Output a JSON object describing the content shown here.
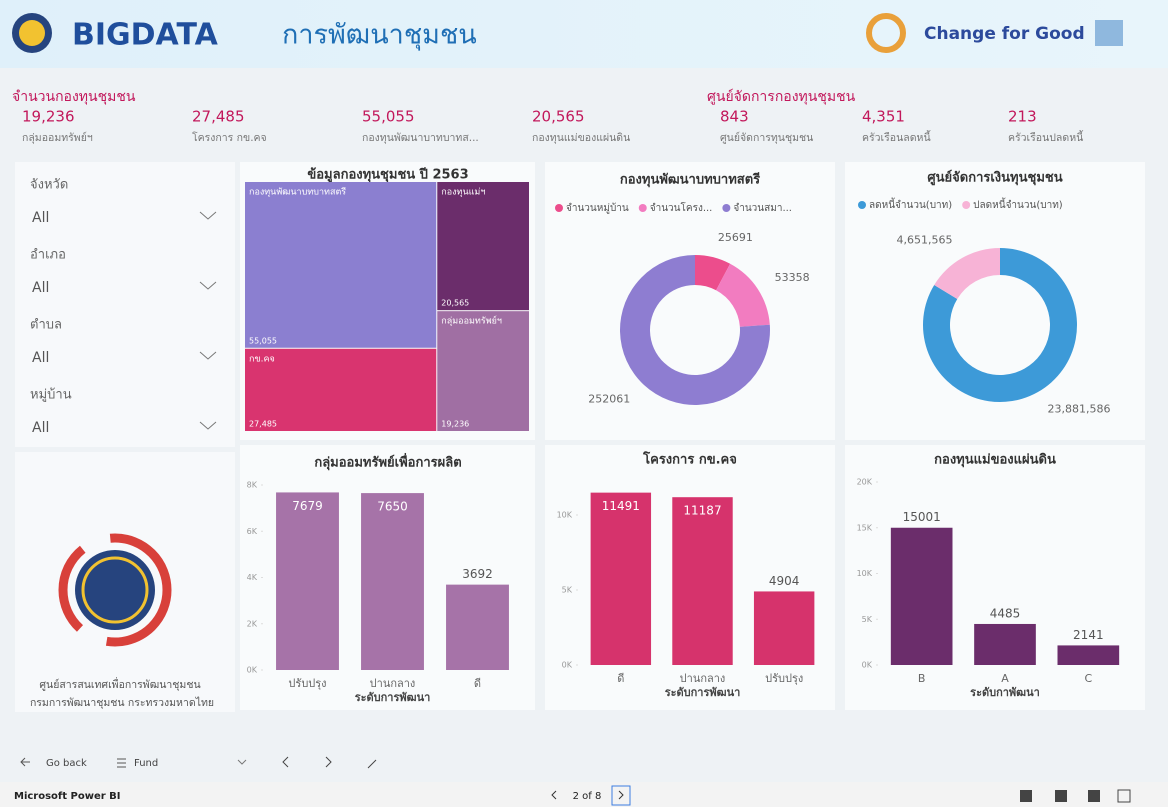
{
  "header": {
    "title": "BIGDATA",
    "subtitle": "การพัฒนาชุมชน",
    "brand": "Change for Good"
  },
  "kpis": {
    "fund_title": "จำนวนกองทุนชุมชน",
    "fund_items": [
      {
        "value": "19,236",
        "label": "กลุ่มออมทรัพย์ฯ"
      },
      {
        "value": "27,485",
        "label": "โครงการ กข.คจ"
      },
      {
        "value": "55,055",
        "label": "กองทุนพัฒนาบาทบาทส..."
      },
      {
        "value": "20,565",
        "label": "กองทุนแม่ของแผ่นดิน"
      }
    ],
    "center_title": "ศูนย์จัดการกองทุนชุมชน",
    "center_items": [
      {
        "value": "843",
        "label": "ศูนย์จัดการทุนชุมชน"
      },
      {
        "value": "4,351",
        "label": "ครัวเรือนลดหนี้"
      },
      {
        "value": "213",
        "label": "ครัวเรือนปลดหนี้"
      }
    ]
  },
  "filters": [
    {
      "label": "จังหวัด",
      "value": "All"
    },
    {
      "label": "อำเภอ",
      "value": "All"
    },
    {
      "label": "ตำบล",
      "value": "All"
    },
    {
      "label": "หมู่บ้าน",
      "value": "All"
    }
  ],
  "org": {
    "line1": "ศูนย์สารสนเทศเพื่อการพัฒนาชุมชน",
    "line2": "กรมการพัฒนาชุมชน กระทรวงมหาดไทย"
  },
  "nav": {
    "back": "Go back",
    "bookmark": "Fund",
    "app": "Microsoft Power BI",
    "page": "2 of 8"
  },
  "chart_data": [
    {
      "type": "treemap",
      "title": "ข้อมูลกองทุนชุมชน ปี 2563",
      "categories": [
        "กองทุนพัฒนาบทบาทสตรี",
        "กข.คจ",
        "กองทุนแม่ฯ",
        "กลุ่มออมทรัพย์ฯ"
      ],
      "values": [
        55055,
        27485,
        20565,
        19236
      ],
      "value_labels": [
        "55,055",
        "27,485",
        "20,565",
        "19,236"
      ],
      "colors": [
        "#8b7fd0",
        "#d9346f",
        "#6b2d6b",
        "#a06fa3"
      ]
    },
    {
      "type": "pie",
      "donut": true,
      "title": "กองทุนพัฒนาบทบาทสตรี",
      "categories": [
        "จำนวนหมู่บ้าน",
        "จำนวนโครง...",
        "จำนวนสมา..."
      ],
      "values": [
        25691,
        53358,
        252061
      ],
      "colors": [
        "#ec4d8c",
        "#f27cc0",
        "#8e7dd1"
      ]
    },
    {
      "type": "pie",
      "donut": true,
      "title": "ศูนย์จัดการเงินทุนชุมชน",
      "categories": [
        "ลดหนี้จำนวน(บาท)",
        "ปลดหนี้จำนวน(บาท)"
      ],
      "values": [
        23881586,
        4651565
      ],
      "value_labels": [
        "23,881,586",
        "4,651,565"
      ],
      "colors": [
        "#3d9ad8",
        "#f7b3d6"
      ]
    },
    {
      "type": "bar",
      "title": "กลุ่มออมทรัพย์เพื่อการผลิต",
      "x_label": "ระดับการพัฒนา",
      "categories": [
        "ปรับปรุง",
        "ปานกลาง",
        "ดี"
      ],
      "values": [
        7679,
        7650,
        3692
      ],
      "color": "#a673a8",
      "ylim": [
        0,
        8000
      ],
      "yticks": [
        {
          "value": 0,
          "label": "0K"
        },
        {
          "value": 2000,
          "label": "2K"
        },
        {
          "value": 4000,
          "label": "4K"
        },
        {
          "value": 6000,
          "label": "6K"
        },
        {
          "value": 8000,
          "label": "8K"
        }
      ]
    },
    {
      "type": "bar",
      "title": "โครงการ กข.คจ",
      "x_label": "ระดับการพัฒนา",
      "categories": [
        "ดี",
        "ปานกลาง",
        "ปรับปรุง"
      ],
      "values": [
        11491,
        11187,
        4904
      ],
      "color": "#d6336c",
      "ylim": [
        0,
        12000
      ],
      "yticks": [
        {
          "value": 0,
          "label": "0K"
        },
        {
          "value": 5000,
          "label": "5K"
        },
        {
          "value": 10000,
          "label": "10K"
        }
      ]
    },
    {
      "type": "bar",
      "title": "กองทุนแม่ของแผ่นดิน",
      "x_label": "ระดับกาพัฒนา",
      "categories": [
        "B",
        "A",
        "C"
      ],
      "values": [
        15001,
        4485,
        2141
      ],
      "color": "#6b2d6b",
      "ylim": [
        0,
        20000
      ],
      "yticks": [
        {
          "value": 0,
          "label": "0K"
        },
        {
          "value": 5000,
          "label": "5K"
        },
        {
          "value": 10000,
          "label": "10K"
        },
        {
          "value": 15000,
          "label": "15K"
        },
        {
          "value": 20000,
          "label": "20K"
        }
      ]
    }
  ]
}
